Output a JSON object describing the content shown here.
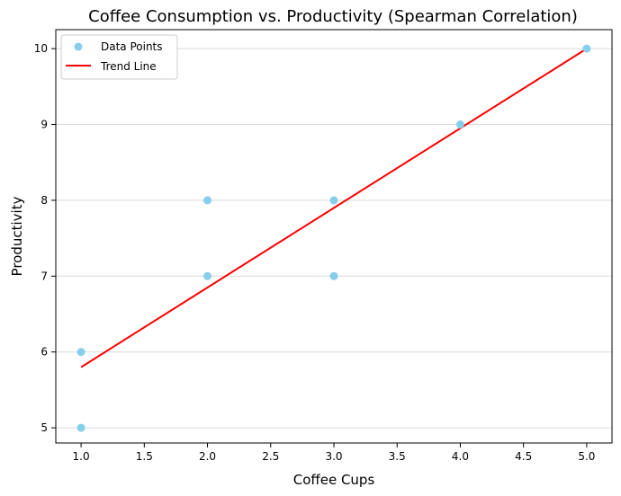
{
  "chart_data": {
    "type": "scatter",
    "title": "Coffee Consumption vs. Productivity (Spearman Correlation)",
    "xlabel": "Coffee Cups",
    "ylabel": "Productivity",
    "xlim": [
      0.8,
      5.2
    ],
    "ylim": [
      4.8,
      10.25
    ],
    "xticks": [
      1.0,
      1.5,
      2.0,
      2.5,
      3.0,
      3.5,
      4.0,
      4.5,
      5.0
    ],
    "xtick_labels": [
      "1.0",
      "1.5",
      "2.0",
      "2.5",
      "3.0",
      "3.5",
      "4.0",
      "4.5",
      "5.0"
    ],
    "yticks": [
      5,
      6,
      7,
      8,
      9,
      10
    ],
    "ytick_labels": [
      "5",
      "6",
      "7",
      "8",
      "9",
      "10"
    ],
    "grid": "horizontal",
    "legend_position": "top-left",
    "series": [
      {
        "name": "Data Points",
        "kind": "scatter",
        "color": "#87ceeb",
        "points": [
          {
            "x": 1,
            "y": 5
          },
          {
            "x": 1,
            "y": 6
          },
          {
            "x": 2,
            "y": 7
          },
          {
            "x": 2,
            "y": 8
          },
          {
            "x": 3,
            "y": 7
          },
          {
            "x": 3,
            "y": 8
          },
          {
            "x": 4,
            "y": 9
          },
          {
            "x": 5,
            "y": 10
          }
        ]
      },
      {
        "name": "Trend Line",
        "kind": "line",
        "color": "#ff0000",
        "points": [
          {
            "x": 1,
            "y": 5.8
          },
          {
            "x": 5,
            "y": 10.0
          }
        ]
      }
    ]
  }
}
